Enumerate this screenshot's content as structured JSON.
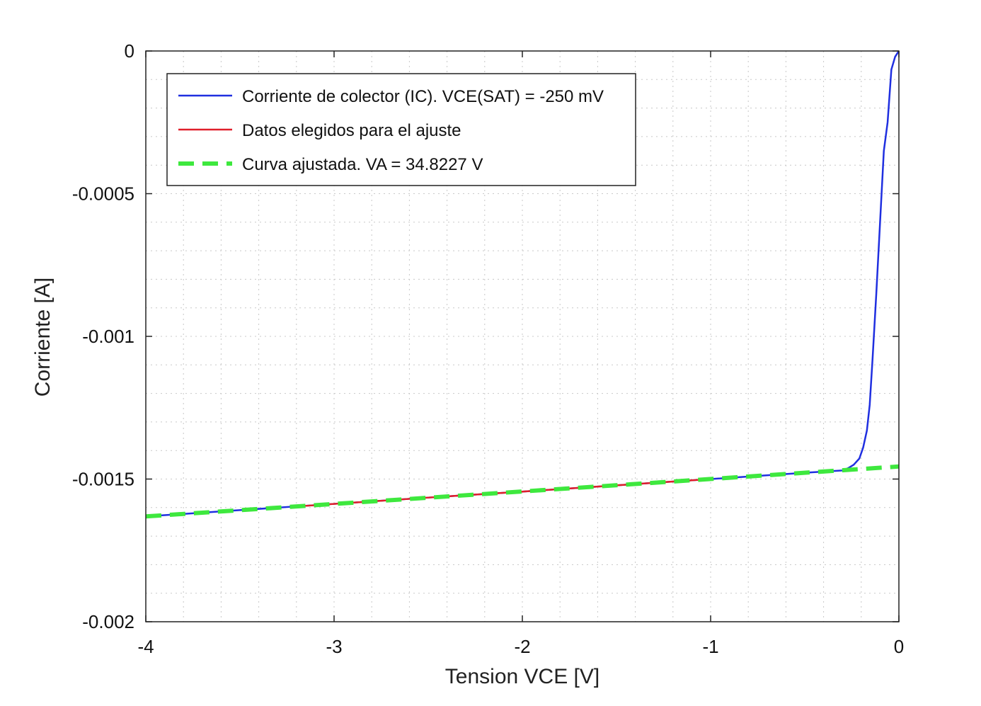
{
  "chart_data": {
    "type": "line",
    "xlabel": "Tension VCE [V]",
    "ylabel": "Corriente [A]",
    "xlim": [
      -4,
      0
    ],
    "ylim": [
      -0.002,
      0
    ],
    "xticks": [
      -4,
      -3,
      -2,
      -1,
      0
    ],
    "xtick_labels": [
      "-4",
      "-3",
      "-2",
      "-1",
      "0"
    ],
    "yticks": [
      0,
      -0.0005,
      -0.001,
      -0.0015,
      -0.002
    ],
    "ytick_labels": [
      "0",
      "-0.0005",
      "-0.001",
      "-0.0015",
      "-0.002"
    ],
    "grid": "on (dotted, with minor grid)",
    "legend_position": "top-left",
    "series": [
      {
        "name": "Corriente de colector (IC). VCE(SAT) = -250 mV",
        "color": "#1f2fe0",
        "style": "solid",
        "x": [
          -4.0,
          -3.5,
          -3.0,
          -2.5,
          -2.0,
          -1.5,
          -1.0,
          -0.5,
          -0.3,
          -0.27,
          -0.24,
          -0.21,
          -0.19,
          -0.17,
          -0.155,
          -0.14,
          -0.12,
          -0.1,
          -0.08,
          -0.06,
          -0.04,
          -0.02,
          0.0
        ],
        "y": [
          -0.001631,
          -0.001609,
          -0.001587,
          -0.001565,
          -0.001544,
          -0.001522,
          -0.0015,
          -0.001478,
          -0.00147,
          -0.001462,
          -0.00145,
          -0.001428,
          -0.00139,
          -0.00133,
          -0.00124,
          -0.00108,
          -0.00085,
          -0.0006,
          -0.00035,
          -0.00025,
          -6.5e-05,
          -2e-05,
          0.0
        ]
      },
      {
        "name": "Datos elegidos para el ajuste",
        "color": "#e01f2a",
        "style": "solid",
        "x": [
          -3.2,
          -2.5,
          -2.0,
          -1.5,
          -1.0
        ],
        "y": [
          -0.001596,
          -0.001565,
          -0.001544,
          -0.001522,
          -0.0015
        ]
      },
      {
        "name": "Curva ajustada. VA = 34.8227 V",
        "color": "#3ee83e",
        "style": "dashed",
        "x": [
          -4.0,
          0.0
        ],
        "y": [
          -0.001631,
          -0.001456
        ]
      }
    ]
  }
}
